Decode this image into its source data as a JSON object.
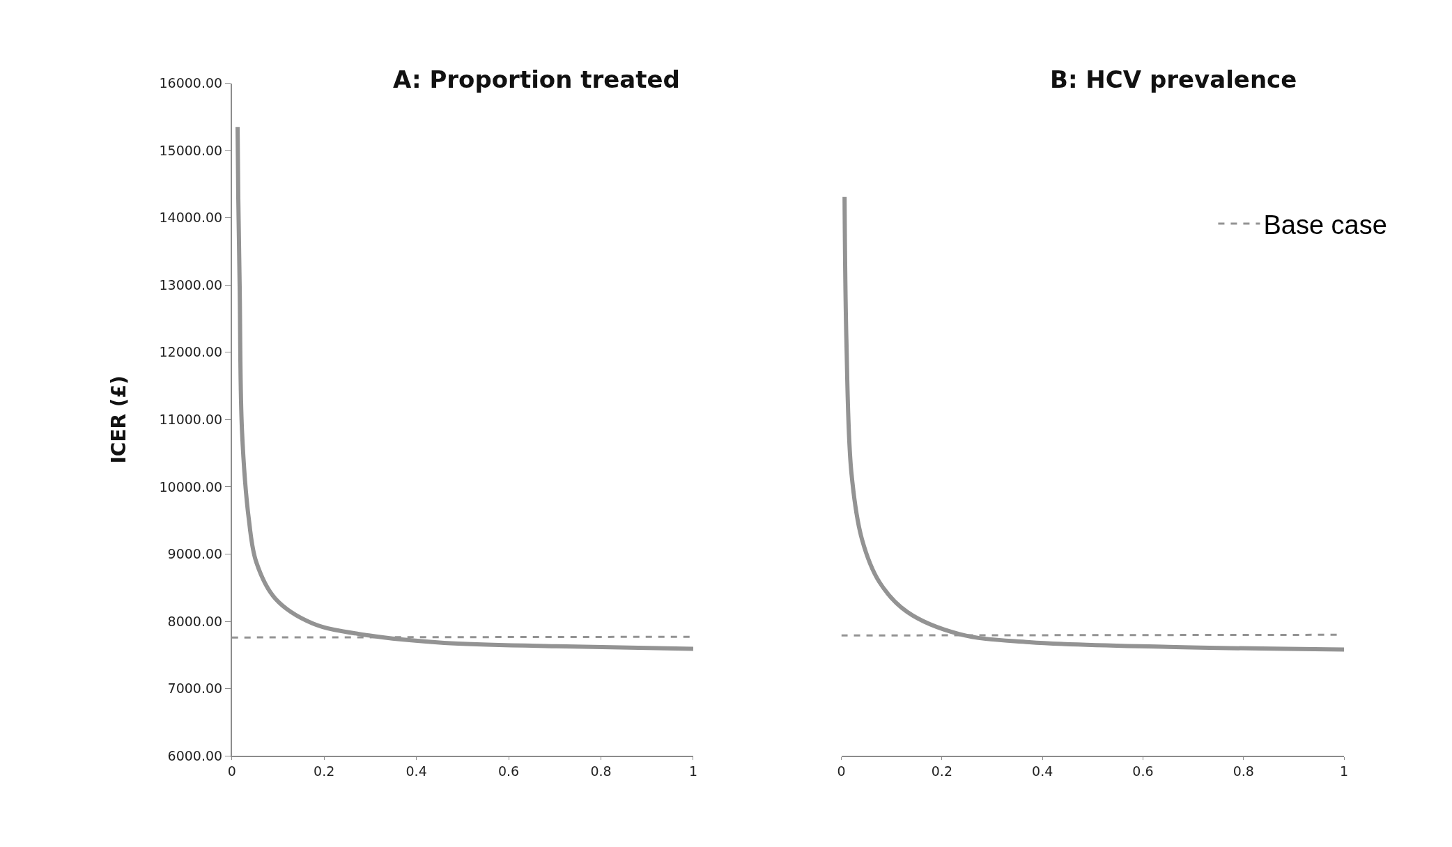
{
  "chart_data": [
    {
      "type": "line",
      "title": "A: Proportion treated",
      "ylabel": "ICER (£)",
      "xlim": [
        0,
        1
      ],
      "xticks": [
        0,
        0.2,
        0.4,
        0.6,
        0.8,
        1
      ],
      "ylim": [
        6000,
        16000
      ],
      "yticks": [
        {
          "value": 6000,
          "label": "6000.00"
        },
        {
          "value": 7000,
          "label": "7000.00"
        },
        {
          "value": 8000,
          "label": "8000.00"
        },
        {
          "value": 9000,
          "label": "9000.00"
        },
        {
          "value": 10000,
          "label": "10000.00"
        },
        {
          "value": 11000,
          "label": "11000.00"
        },
        {
          "value": 12000,
          "label": "12000.00"
        },
        {
          "value": 13000,
          "label": "13000.00"
        },
        {
          "value": 14000,
          "label": "14000.00"
        },
        {
          "value": 15000,
          "label": "15000.00"
        },
        {
          "value": 16000,
          "label": "16000.00"
        }
      ],
      "legend": false,
      "series": [
        {
          "color": "#939393",
          "line_style": "solid",
          "x": [
            0.0125,
            0.014,
            0.017,
            0.022,
            0.037,
            0.053,
            0.094,
            0.175,
            0.297,
            0.46,
            0.704,
            1.0
          ],
          "values": [
            15350,
            14300,
            12970,
            10840,
            9510,
            8880,
            8340,
            7970,
            7790,
            7680,
            7630,
            7590
          ]
        },
        {
          "color": "#939393",
          "line_style": "dashed",
          "x": [
            0,
            1
          ],
          "values": [
            7760,
            7770
          ]
        }
      ]
    },
    {
      "type": "line",
      "title": "B: HCV prevalence",
      "xlim": [
        0,
        1
      ],
      "xticks": [
        0,
        0.2,
        0.4,
        0.6,
        0.8,
        1
      ],
      "ylim": [
        6000,
        16000
      ],
      "tick_labels": "x",
      "legend": "top right",
      "series": [
        {
          "color": "#939393",
          "line_style": "solid",
          "x": [
            0.0064,
            0.01,
            0.02,
            0.041,
            0.076,
            0.131,
            0.235,
            0.374,
            0.651,
            1.0
          ],
          "values": [
            14310,
            12190,
            10210,
            9220,
            8580,
            8140,
            7810,
            7690,
            7620,
            7580
          ]
        },
        {
          "name": "Base case",
          "color": "#939393",
          "line_style": "dashed",
          "x": [
            0,
            0.99
          ],
          "values": [
            7790,
            7800
          ]
        }
      ]
    }
  ]
}
